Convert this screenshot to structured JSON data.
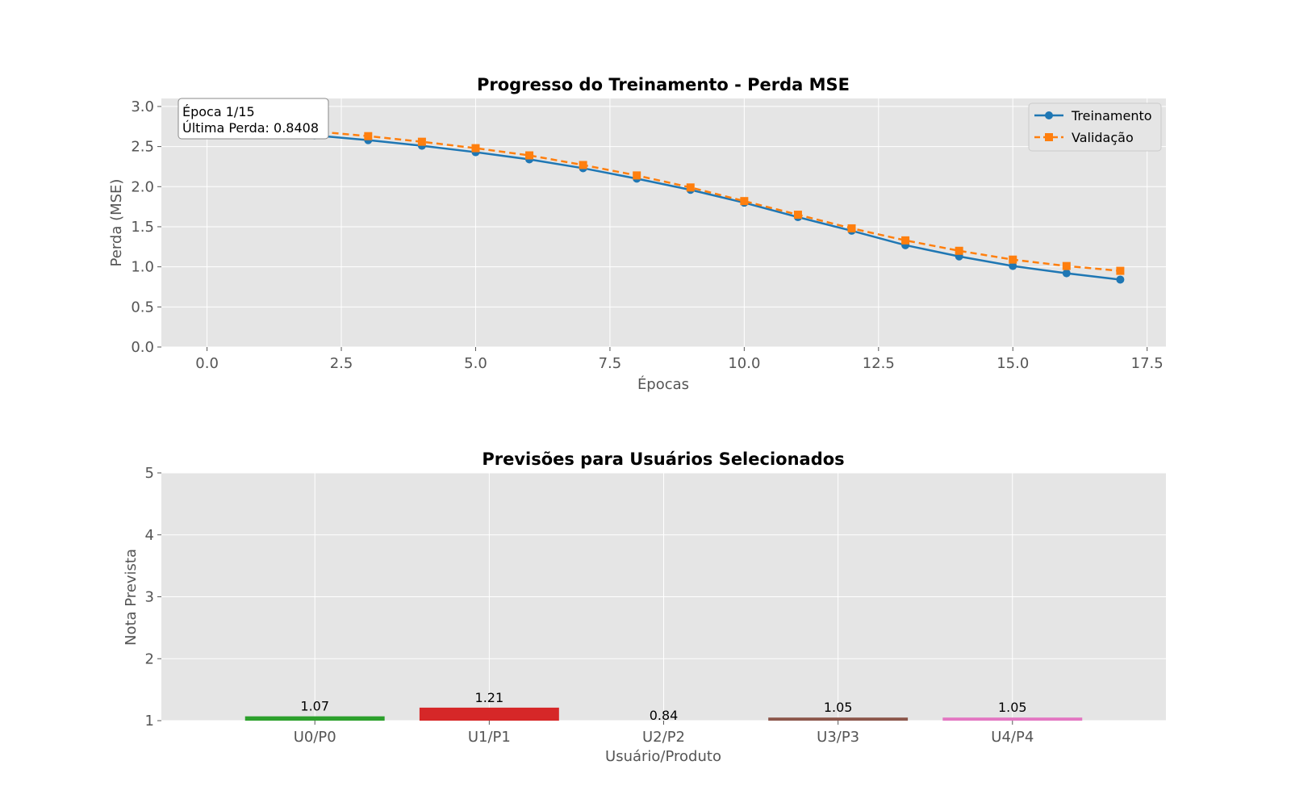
{
  "chart_data": [
    {
      "type": "line",
      "title": "Progresso do Treinamento - Perda MSE",
      "xlabel": "Épocas",
      "ylabel": "Perda (MSE)",
      "xlim": [
        -0.85,
        17.85
      ],
      "ylim": [
        0.0,
        3.1
      ],
      "xticks": [
        "0.0",
        "2.5",
        "5.0",
        "7.5",
        "10.0",
        "12.5",
        "15.0",
        "17.5"
      ],
      "yticks": [
        "0.0",
        "0.5",
        "1.0",
        "1.5",
        "2.0",
        "2.5",
        "3.0"
      ],
      "grid": true,
      "legend_position": "upper-right",
      "annotation": {
        "line1": "Época 1/15",
        "line2": "Última Perda: 0.8408",
        "position": "upper-left"
      },
      "series": [
        {
          "name": "Treinamento",
          "color": "#1f77b4",
          "marker": "circle",
          "linestyle": "solid",
          "x": [
            0,
            1,
            2,
            3,
            4,
            5,
            6,
            7,
            8,
            9,
            10,
            11,
            12,
            13,
            14,
            15,
            16,
            17
          ],
          "y": [
            2.8,
            2.72,
            2.64,
            2.58,
            2.51,
            2.43,
            2.34,
            2.23,
            2.1,
            1.96,
            1.8,
            1.62,
            1.45,
            1.27,
            1.13,
            1.01,
            0.92,
            0.8408
          ]
        },
        {
          "name": "Validação",
          "color": "#ff7f0e",
          "marker": "square",
          "linestyle": "dashed",
          "x": [
            0,
            1,
            2,
            3,
            4,
            5,
            6,
            7,
            8,
            9,
            10,
            11,
            12,
            13,
            14,
            15,
            16,
            17
          ],
          "y": [
            2.85,
            2.77,
            2.69,
            2.63,
            2.56,
            2.48,
            2.39,
            2.27,
            2.14,
            1.99,
            1.82,
            1.65,
            1.48,
            1.33,
            1.2,
            1.09,
            1.01,
            0.95
          ]
        }
      ]
    },
    {
      "type": "bar",
      "title": "Previsões para Usuários Selecionados",
      "xlabel": "Usuário/Produto",
      "ylabel": "Nota Prevista",
      "ylim": [
        1,
        5
      ],
      "yticks": [
        "1",
        "2",
        "3",
        "4",
        "5"
      ],
      "grid": true,
      "categories": [
        "U0/P0",
        "U1/P1",
        "U2/P2",
        "U3/P3",
        "U4/P4"
      ],
      "values": [
        1.07,
        1.21,
        0.84,
        1.05,
        1.05
      ],
      "value_labels": [
        "1.07",
        "1.21",
        "0.84",
        "1.05",
        "1.05"
      ],
      "colors": [
        "#2ca02c",
        "#d62728",
        "#9467bd",
        "#8c564b",
        "#e377c2"
      ]
    }
  ],
  "style": {
    "axes_background": "#e5e5e5",
    "grid_color": "#ffffff",
    "text_color": "#555555"
  }
}
